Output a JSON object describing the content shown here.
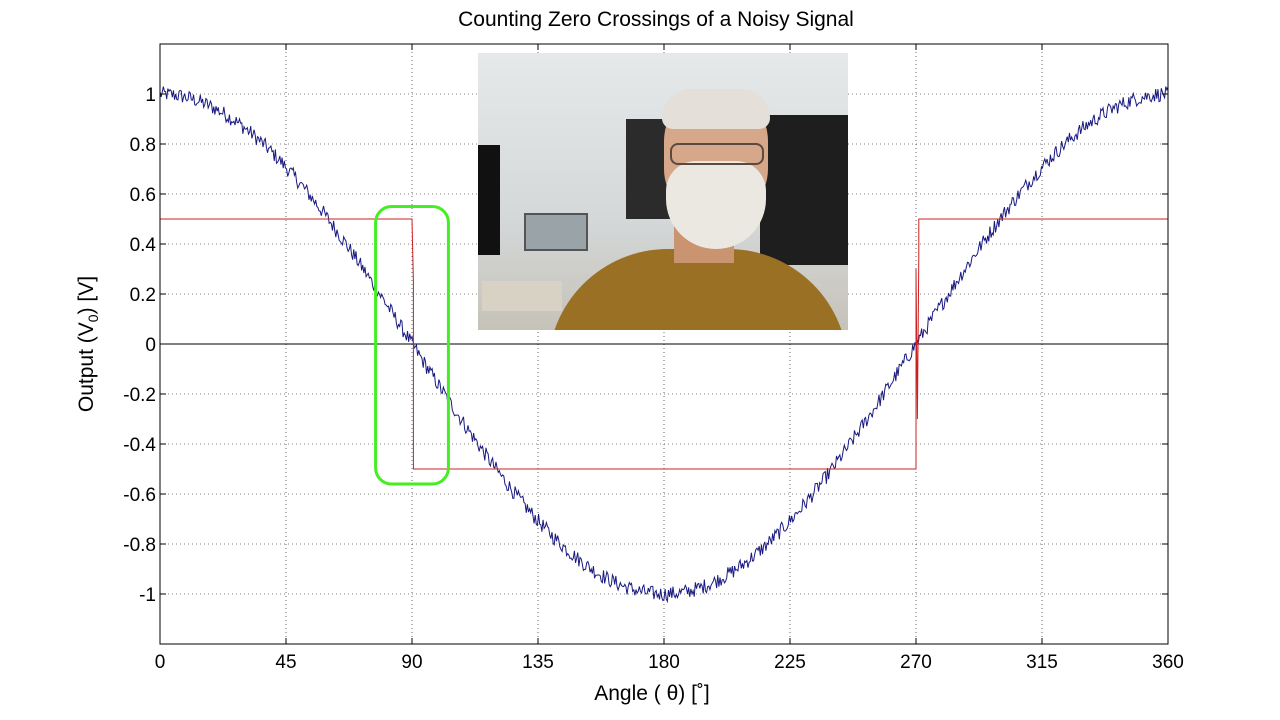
{
  "chart_data": {
    "type": "line",
    "title": "Counting Zero Crossings of a Noisy Signal",
    "xlabel": "Angle ( θ) [˚]",
    "ylabel_main": "Output (V",
    "ylabel_sub": "0",
    "ylabel_end": ") [V]",
    "xlim": [
      0,
      360
    ],
    "ylim": [
      -1.2,
      1.2
    ],
    "x_ticks": [
      0,
      45,
      90,
      135,
      180,
      225,
      270,
      315,
      360
    ],
    "x_tick_labels": [
      "0",
      "45",
      "90",
      "135",
      "180",
      "225",
      "270",
      "315",
      "360"
    ],
    "y_ticks": [
      1,
      0.8,
      0.6,
      0.4,
      0.2,
      0,
      -0.2,
      -0.4,
      -0.6,
      -0.8,
      -1
    ],
    "y_tick_labels": [
      "1",
      "0.8",
      "0.6",
      "0.4",
      "0.2",
      "0",
      "-0.2",
      "-0.4",
      "-0.6",
      "-0.8",
      "-1"
    ],
    "grid": true,
    "series": [
      {
        "description_color": "#1a1a80",
        "form": "cos(θ) plus random noise (±0.03)",
        "x": [
          0,
          15,
          30,
          45,
          60,
          75,
          90,
          105,
          120,
          135,
          150,
          165,
          180,
          195,
          210,
          225,
          240,
          255,
          270,
          285,
          300,
          315,
          330,
          345,
          360
        ],
        "y": [
          1.0,
          0.97,
          0.87,
          0.71,
          0.5,
          0.26,
          0.0,
          -0.26,
          -0.5,
          -0.71,
          -0.87,
          -0.97,
          -1.0,
          -0.97,
          -0.87,
          -0.71,
          -0.5,
          -0.26,
          0.0,
          0.26,
          0.5,
          0.71,
          0.87,
          0.97,
          1.0
        ]
      },
      {
        "description_color": "#cc2020",
        "form": "comparator output",
        "x": [
          0,
          90,
          90.5,
          90.5,
          91.5,
          91.5,
          270,
          270,
          270.5,
          271,
          271,
          272,
          272,
          360
        ],
        "y": [
          0.5,
          0.5,
          0.25,
          -0.5,
          -0.5,
          -0.5,
          -0.5,
          0.3,
          -0.3,
          0.35,
          0.5,
          0.5,
          0.5,
          0.5
        ]
      }
    ],
    "highlight": {
      "x_range": [
        77,
        103
      ],
      "y_range": [
        -0.56,
        0.55
      ],
      "color": "#44ee22"
    }
  },
  "colors": {
    "signal": "#1a1a80",
    "comparator": "#cc2020",
    "highlight": "#44ee22",
    "zero_line": "#000000",
    "grid": "#000000"
  }
}
